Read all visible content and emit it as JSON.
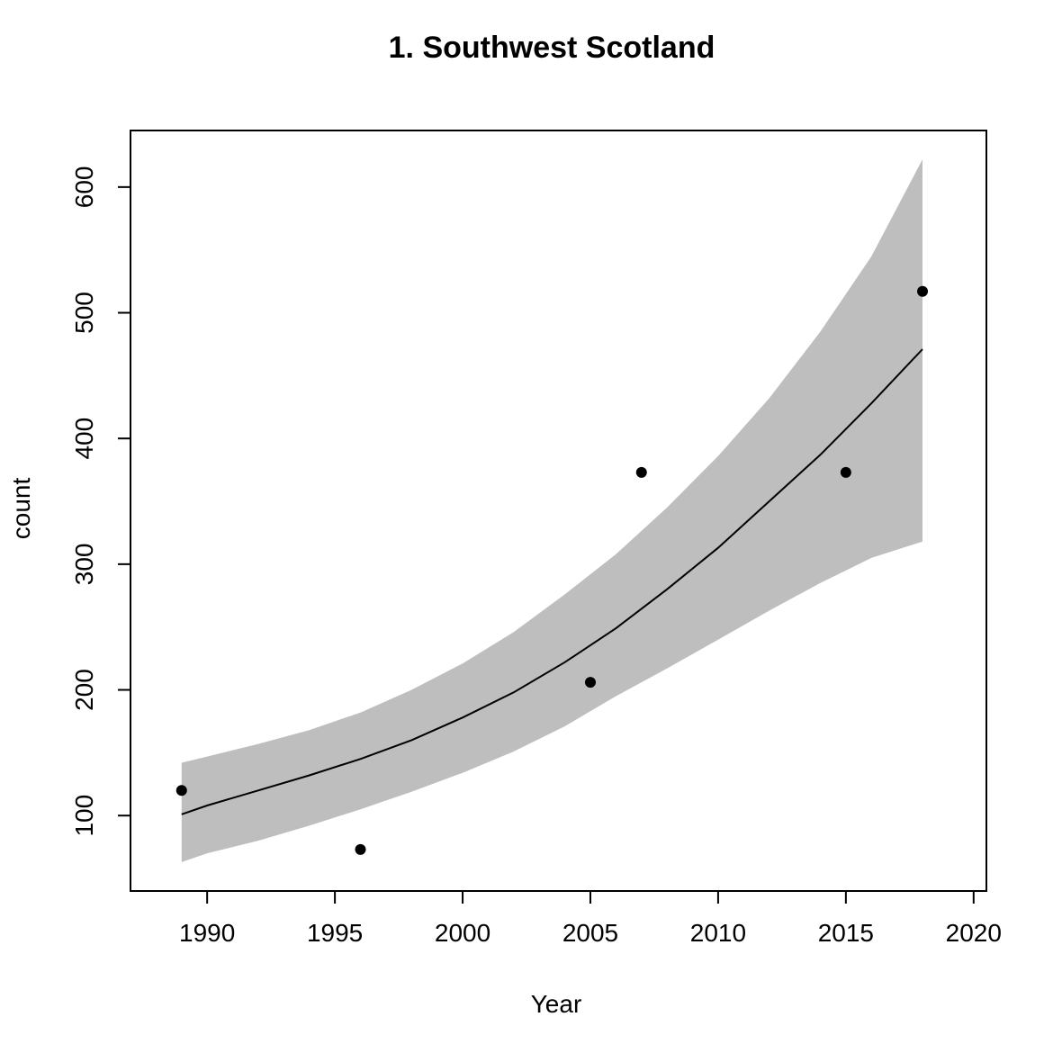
{
  "chart_data": {
    "type": "scatter",
    "title": "1. Southwest Scotland",
    "xlabel": "Year",
    "ylabel": "count",
    "xlim": [
      1987,
      2020.5
    ],
    "ylim": [
      40,
      645
    ],
    "x_ticks": [
      1990,
      1995,
      2000,
      2005,
      2010,
      2015,
      2020
    ],
    "y_ticks": [
      100,
      200,
      300,
      400,
      500,
      600
    ],
    "grid": false,
    "legend": "none",
    "colors": {
      "points": "#000000",
      "fit_line": "#000000",
      "band": "#bebebe",
      "frame": "#000000"
    },
    "points": [
      {
        "x": 1989,
        "y": 120
      },
      {
        "x": 1996,
        "y": 73
      },
      {
        "x": 2005,
        "y": 206
      },
      {
        "x": 2007,
        "y": 373
      },
      {
        "x": 2015,
        "y": 373
      },
      {
        "x": 2018,
        "y": 517
      }
    ],
    "fit": {
      "x": [
        1989,
        1990,
        1992,
        1994,
        1996,
        1998,
        2000,
        2002,
        2004,
        2006,
        2008,
        2010,
        2012,
        2014,
        2016,
        2018
      ],
      "y": [
        101,
        108,
        120,
        132,
        145,
        160,
        178,
        198,
        222,
        249,
        280,
        313,
        350,
        387,
        428,
        471
      ],
      "lower": [
        63,
        70,
        80,
        92,
        105,
        119,
        134,
        151,
        171,
        195,
        217,
        240,
        263,
        285,
        305,
        318
      ],
      "upper": [
        142,
        147,
        157,
        168,
        182,
        200,
        221,
        246,
        276,
        308,
        345,
        386,
        432,
        485,
        545,
        622
      ]
    }
  }
}
